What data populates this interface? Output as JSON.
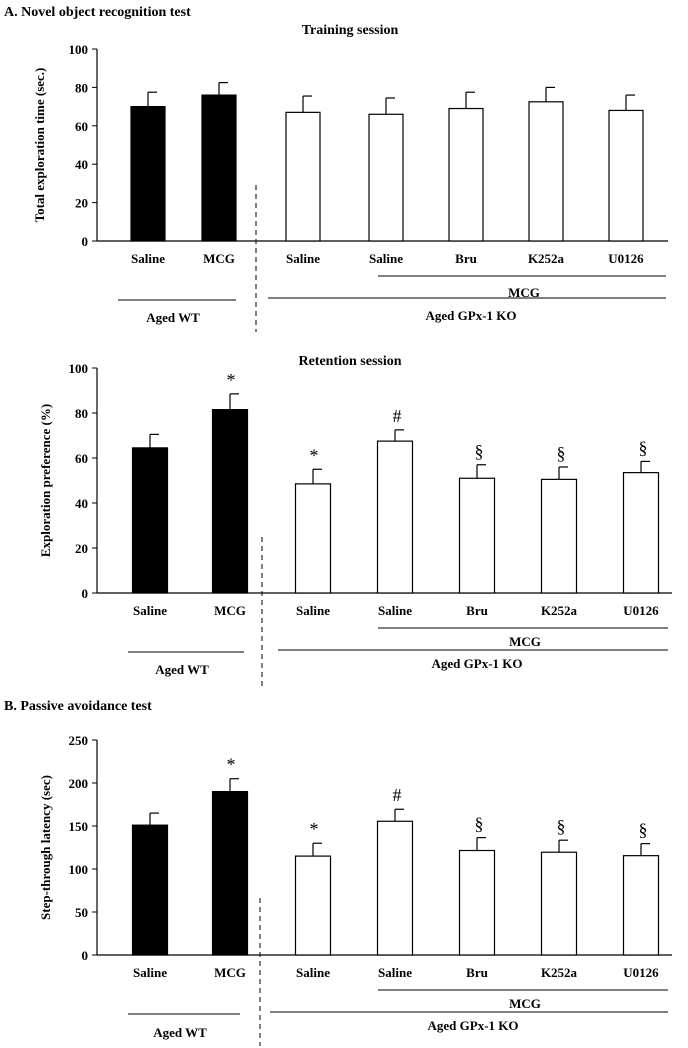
{
  "sections": {
    "a_title": "A. Novel object recognition test",
    "b_title": "B. Passive avoidance test"
  },
  "charts": [
    {
      "id": "training",
      "title": "Training session",
      "ylabel": "Total exploration time (sec.)"
    },
    {
      "id": "retention",
      "title": "Retention session",
      "ylabel": "Exploration preference (%)"
    },
    {
      "id": "passive",
      "title": "",
      "ylabel": "Step-through latency (sec)"
    }
  ],
  "groups": {
    "aged_wt": "Aged WT",
    "aged_gpx1_ko": "Aged GPx-1 KO",
    "mcg": "MCG"
  },
  "colors": {
    "filled_bar": "#000000",
    "open_bar": "#ffffff",
    "axis": "#000000"
  },
  "chart_data": [
    {
      "type": "bar",
      "title": "Training session",
      "ylabel": "Total exploration time (sec.)",
      "categories": [
        "Saline",
        "MCG",
        "Saline",
        "Saline",
        "Bru",
        "K252a",
        "U0126"
      ],
      "values": [
        70,
        76,
        67,
        66,
        69,
        72.5,
        68
      ],
      "errors": [
        7.5,
        6.5,
        8.5,
        8.5,
        8.5,
        7.5,
        8
      ],
      "fill": [
        "black",
        "black",
        "white",
        "white",
        "white",
        "white",
        "white"
      ],
      "annotations": [
        "",
        "",
        "",
        "",
        "",
        "",
        ""
      ],
      "ylim": [
        0,
        100
      ],
      "yticks": [
        0,
        20,
        40,
        60,
        80,
        100
      ],
      "grid": false
    },
    {
      "type": "bar",
      "title": "Retention session",
      "ylabel": "Exploration preference (%)",
      "categories": [
        "Saline",
        "MCG",
        "Saline",
        "Saline",
        "Bru",
        "K252a",
        "U0126"
      ],
      "values": [
        64.5,
        81.5,
        48.5,
        67.5,
        51,
        50.5,
        53.5
      ],
      "errors": [
        6,
        7,
        6.5,
        5,
        6,
        5.5,
        5
      ],
      "fill": [
        "black",
        "black",
        "white",
        "white",
        "white",
        "white",
        "white"
      ],
      "annotations": [
        "",
        "*",
        "*",
        "#",
        "§",
        "§",
        "§"
      ],
      "ylim": [
        0,
        100
      ],
      "yticks": [
        0,
        20,
        40,
        60,
        80,
        100
      ],
      "grid": false
    },
    {
      "type": "bar",
      "title": "",
      "ylabel": "Step-through latency (sec)",
      "categories": [
        "Saline",
        "MCG",
        "Saline",
        "Saline",
        "Bru",
        "K252a",
        "U0126"
      ],
      "values": [
        151,
        190,
        115,
        155.5,
        121.5,
        119.5,
        115.5
      ],
      "errors": [
        14,
        15,
        15,
        14,
        15,
        14,
        14
      ],
      "fill": [
        "black",
        "black",
        "white",
        "white",
        "white",
        "white",
        "white"
      ],
      "annotations": [
        "",
        "*",
        "*",
        "#",
        "§",
        "§",
        "§"
      ],
      "ylim": [
        0,
        250
      ],
      "yticks": [
        0,
        50,
        100,
        150,
        200,
        250
      ],
      "grid": false
    }
  ]
}
